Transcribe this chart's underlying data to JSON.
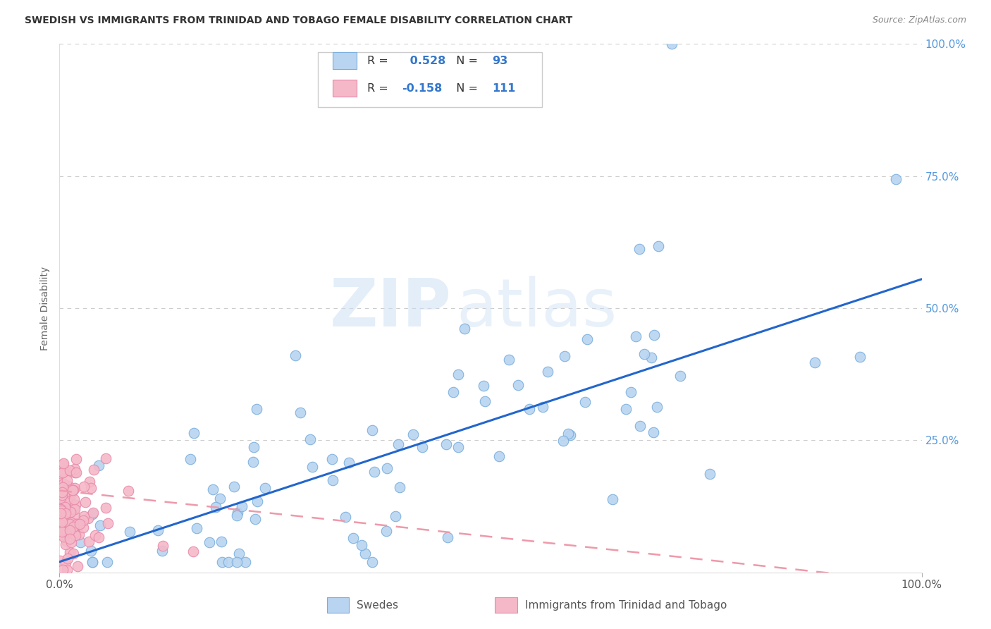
{
  "title": "SWEDISH VS IMMIGRANTS FROM TRINIDAD AND TOBAGO FEMALE DISABILITY CORRELATION CHART",
  "source": "Source: ZipAtlas.com",
  "ylabel": "Female Disability",
  "xlim": [
    0.0,
    1.0
  ],
  "ylim": [
    0.0,
    1.0
  ],
  "blue_R": 0.528,
  "blue_N": 93,
  "pink_R": -0.158,
  "pink_N": 111,
  "blue_color": "#b8d4f0",
  "blue_edge_color": "#7aaedd",
  "pink_color": "#f5b8c8",
  "pink_edge_color": "#e88aaa",
  "blue_line_color": "#2266cc",
  "pink_line_color": "#ee99aa",
  "grid_color": "#cccccc",
  "background_color": "#ffffff",
  "watermark_zip": "ZIP",
  "watermark_atlas": "atlas",
  "right_ytick_color": "#5599dd",
  "title_color": "#333333",
  "source_color": "#888888",
  "legend_R_color": "#333333",
  "legend_val_color": "#3377cc",
  "blue_line_start_y": 0.02,
  "blue_line_end_y": 0.555,
  "pink_line_start_y": 0.155,
  "pink_line_end_y": -0.02
}
